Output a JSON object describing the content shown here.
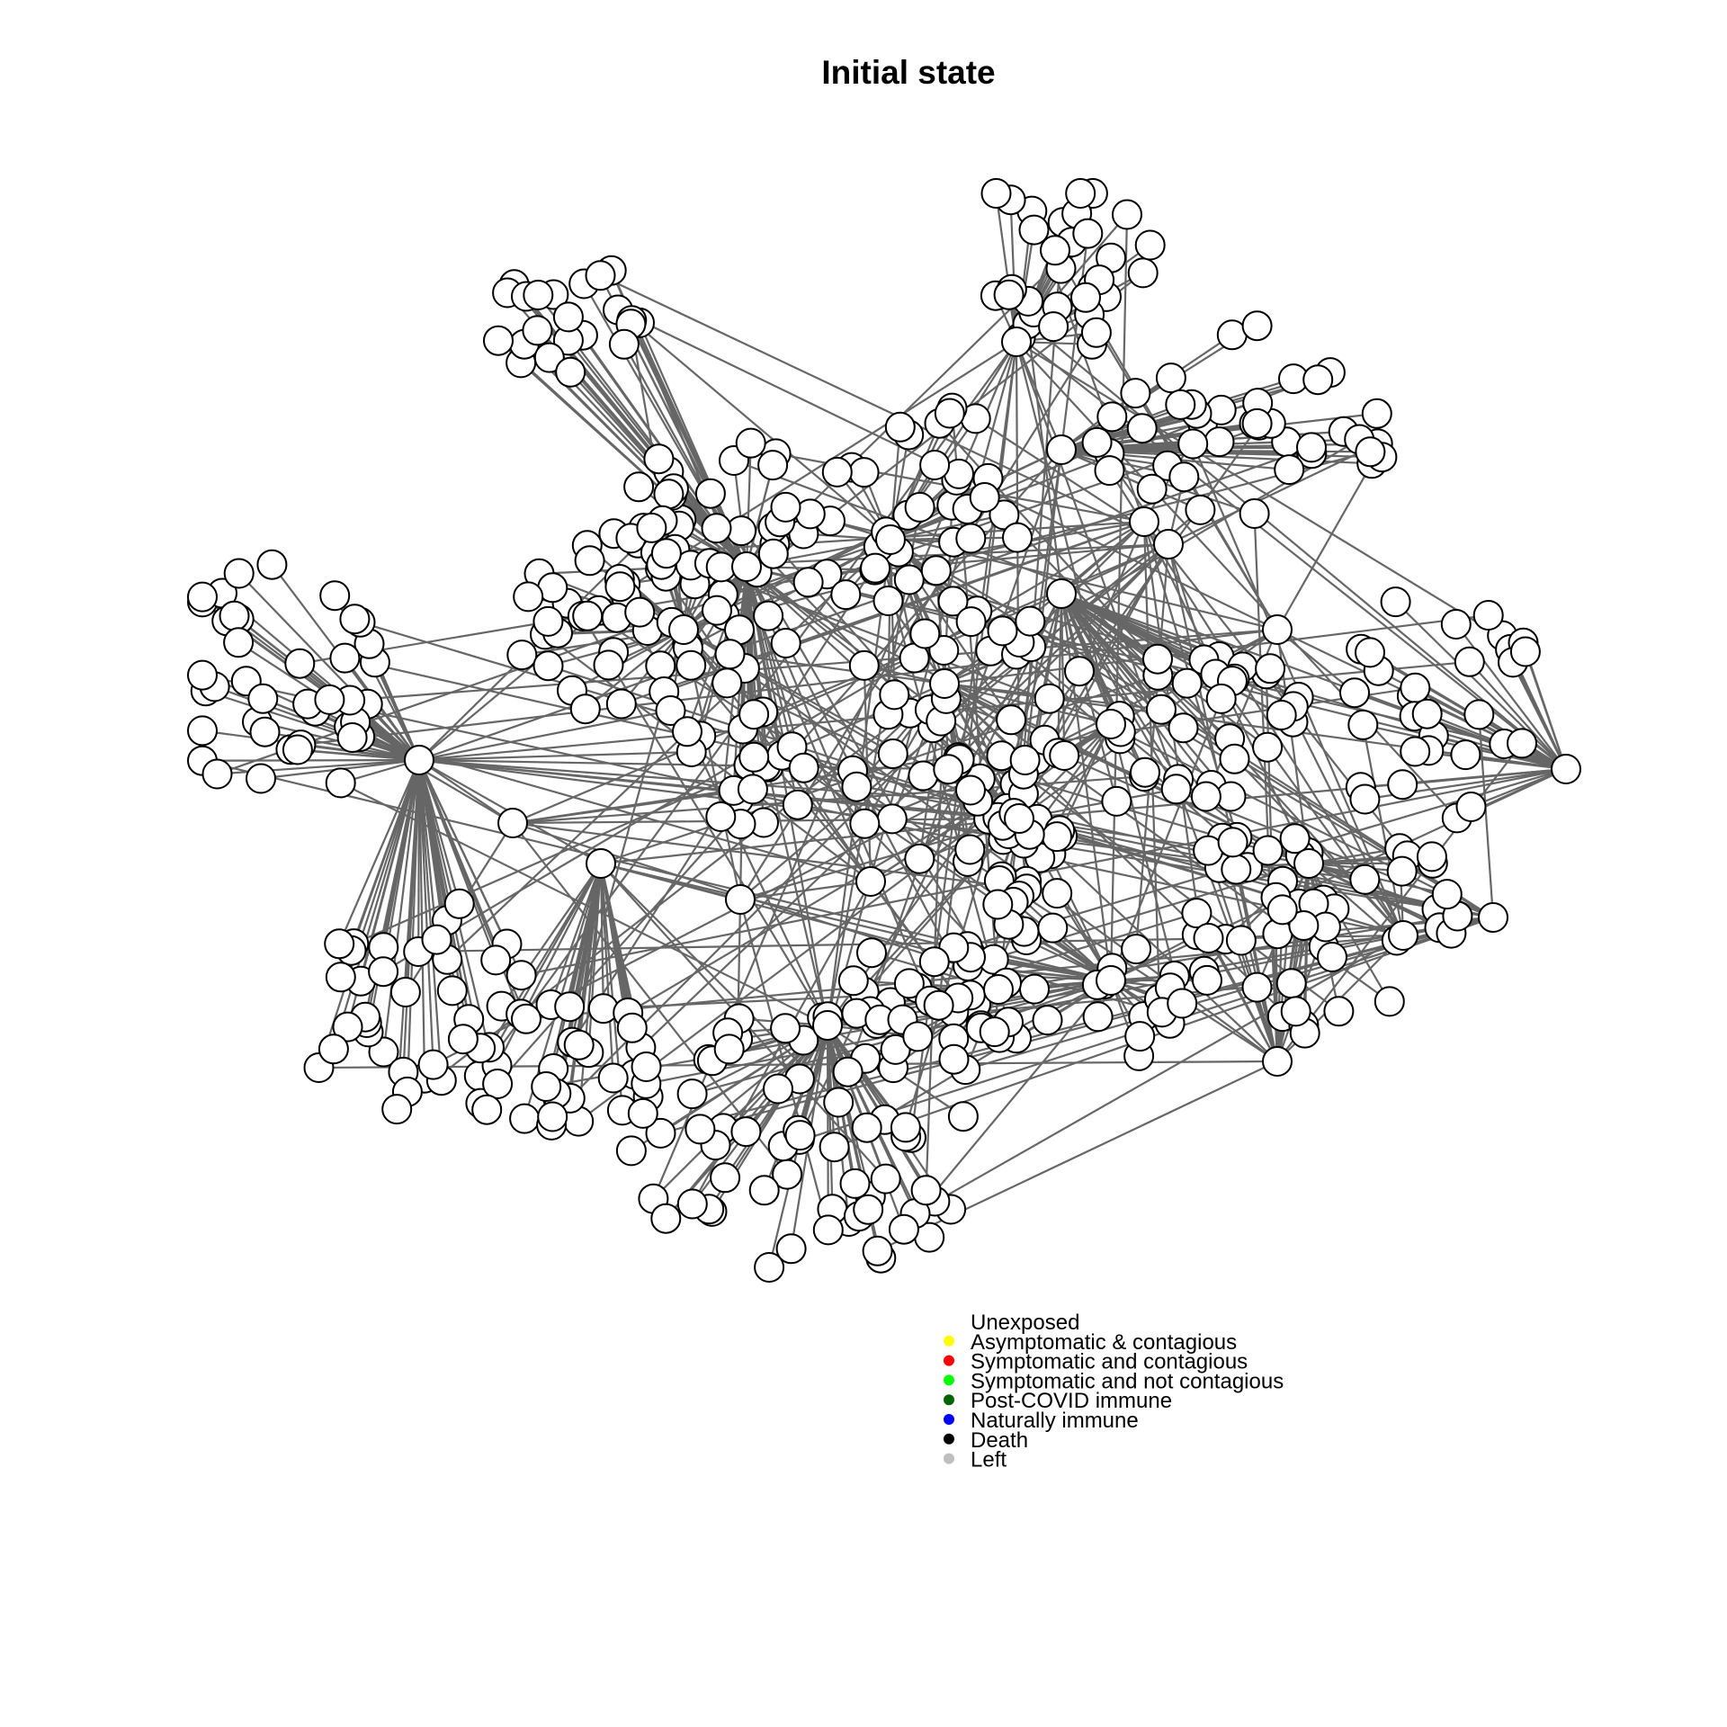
{
  "title": "Initial state",
  "node_fill": "#ffffff",
  "node_stroke": "#000000",
  "edge_color": "#666666",
  "legend": {
    "placement": "bottom-center",
    "entries": [
      {
        "label": "Unexposed",
        "color": "#ffffff"
      },
      {
        "label": "Asymptomatic & contagious",
        "color": "#ffff00"
      },
      {
        "label": "Symptomatic and contagious",
        "color": "#ff0000"
      },
      {
        "label": "Symptomatic and not contagious",
        "color": "#00ff00"
      },
      {
        "label": "Post-COVID immune",
        "color": "#006400"
      },
      {
        "label": "Naturally immune",
        "color": "#0000ff"
      },
      {
        "label": "Death",
        "color": "#000000"
      },
      {
        "label": "Left",
        "color": "#bebebe"
      }
    ]
  }
}
